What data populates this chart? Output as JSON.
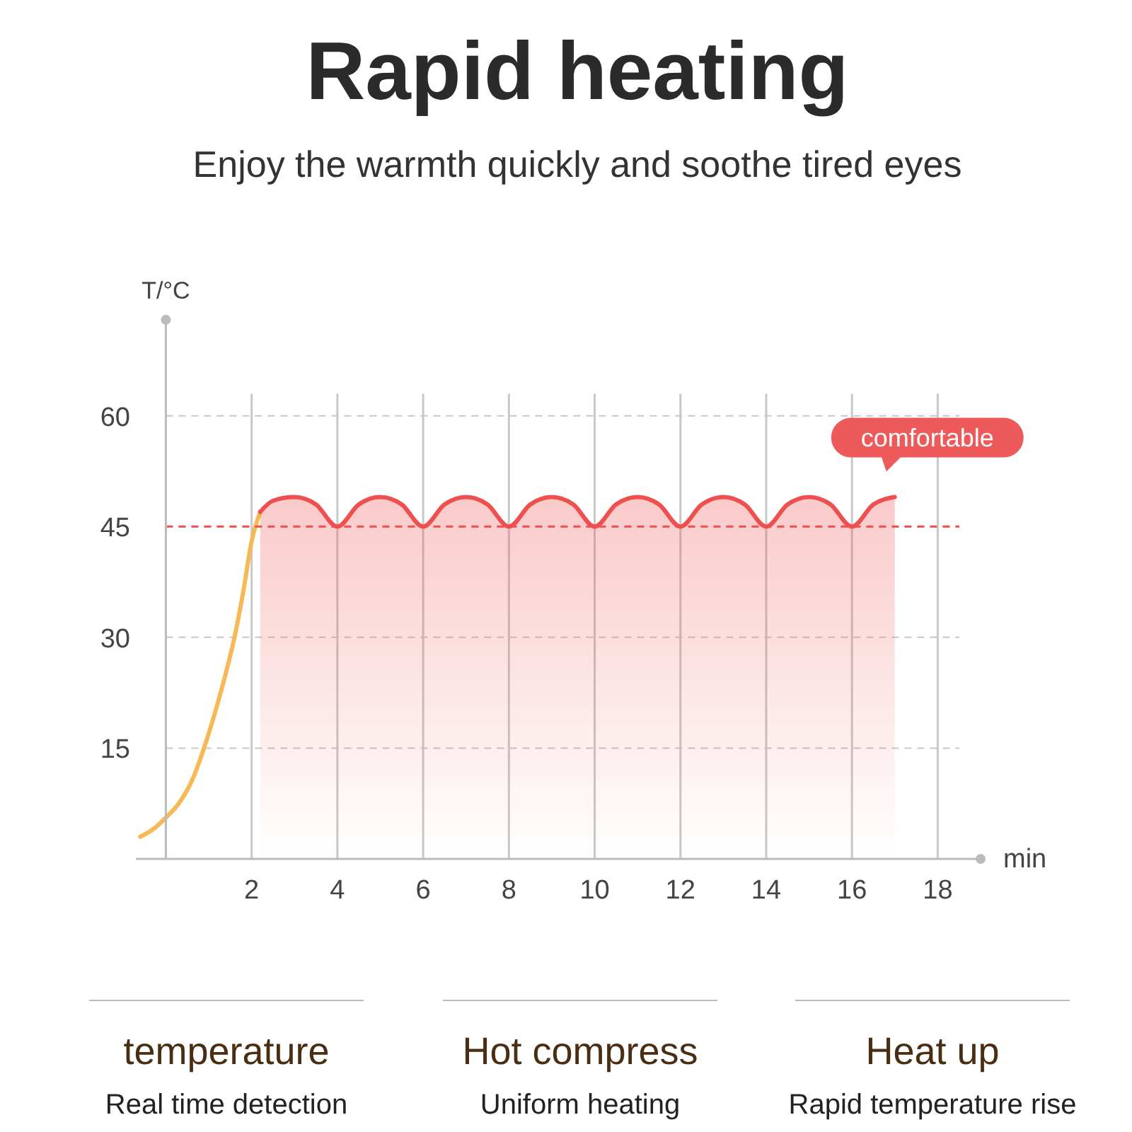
{
  "chart_data": {
    "type": "line",
    "title": "Rapid heating",
    "subtitle": "Enjoy the warmth quickly and soothe tired eyes",
    "xlabel": "min",
    "ylabel": "T/°C",
    "xlim": [
      -0.7,
      19
    ],
    "ylim": [
      0,
      73
    ],
    "xticks": [
      2,
      4,
      6,
      8,
      10,
      12,
      14,
      16,
      18
    ],
    "yticks": [
      15,
      30,
      45,
      60
    ],
    "grid": true,
    "series": [
      {
        "color": "#f7b955",
        "x": [
          -0.6,
          -0.3,
          0,
          0.3,
          0.6,
          1,
          1.3,
          1.6,
          1.8,
          2,
          2.2
        ],
        "values": [
          3,
          4,
          5.6,
          7.5,
          10.5,
          17,
          23,
          30,
          36,
          43,
          47
        ]
      },
      {
        "type": "area",
        "color": "#ee4f4f",
        "x": [
          2.2,
          2.5,
          3,
          3.5,
          4,
          4.5,
          5,
          5.5,
          6,
          6.5,
          7,
          7.5,
          8,
          8.5,
          9,
          9.5,
          10,
          10.5,
          11,
          11.5,
          12,
          12.5,
          13,
          13.5,
          14,
          14.5,
          15,
          15.5,
          16,
          16.5,
          17
        ],
        "values": [
          47,
          48.5,
          49,
          48,
          45,
          48,
          49,
          48,
          45,
          48,
          49,
          48,
          45,
          48,
          49,
          48,
          45,
          48,
          49,
          48,
          45,
          48,
          49,
          48,
          45,
          48,
          49,
          48,
          45,
          48,
          49
        ]
      }
    ],
    "ref_lines": [
      {
        "axis": "y",
        "value": 45,
        "color": "#ee4f4f",
        "line_style": "dashed"
      }
    ],
    "annotations": [
      "comfortable",
      "temperature",
      "Real time detection",
      "Hot compress",
      "Uniform heating",
      "Heat up",
      "Rapid temperature rise"
    ]
  }
}
